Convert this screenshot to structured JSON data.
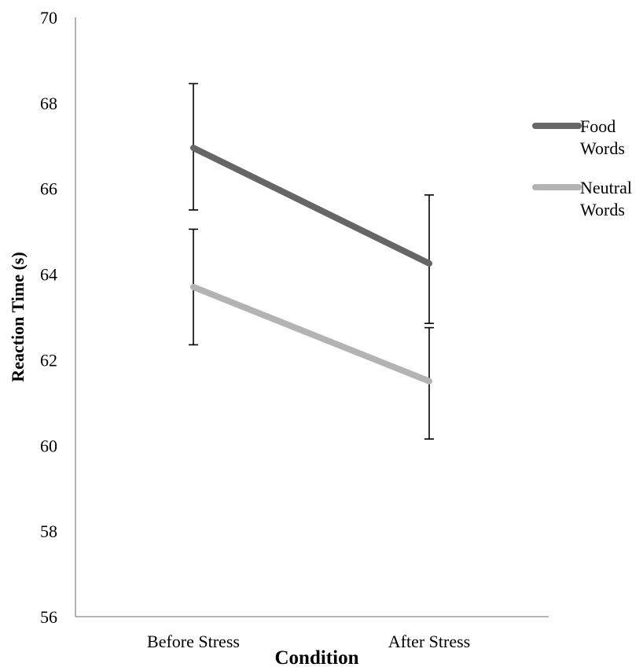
{
  "chart_data": {
    "type": "line",
    "title": "",
    "xlabel": "Condition",
    "ylabel": "Reaction Time (s)",
    "categories": [
      "Before Stress",
      "After Stress"
    ],
    "ylim": [
      56,
      70
    ],
    "y_ticks": [
      "56",
      "58",
      "60",
      "62",
      "64",
      "66",
      "68",
      "70"
    ],
    "grid": false,
    "legend_position": "right",
    "series": [
      {
        "name": "Food Words",
        "name_lines": [
          "Food",
          "Words"
        ],
        "color": "#666666",
        "values": [
          66.95,
          64.25
        ],
        "error_low": [
          65.5,
          62.85
        ],
        "error_high": [
          68.45,
          65.85
        ]
      },
      {
        "name": "Neutral Words",
        "name_lines": [
          "Neutral",
          "Words"
        ],
        "color": "#b3b3b3",
        "values": [
          63.7,
          61.5
        ],
        "error_low": [
          62.35,
          60.15
        ],
        "error_high": [
          65.05,
          62.75
        ]
      }
    ]
  }
}
